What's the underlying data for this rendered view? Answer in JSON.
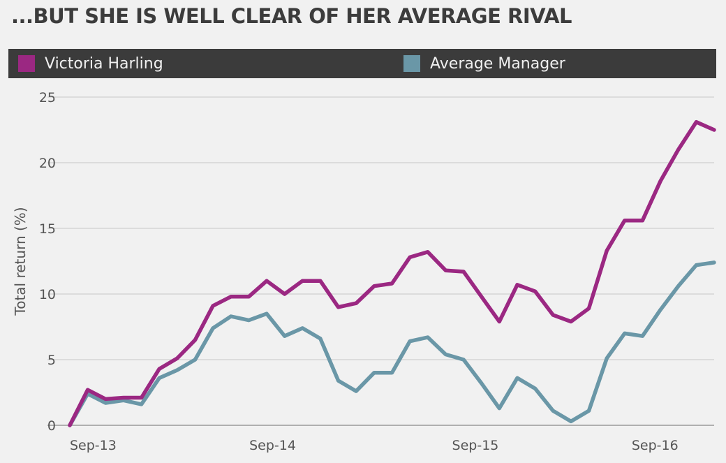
{
  "title": "...BUT SHE IS WELL CLEAR OF HER AVERAGE RIVAL",
  "legend": [
    {
      "label": "Victoria Harling",
      "color": "#9b2882"
    },
    {
      "label": "Average Manager",
      "color": "#6a97a7"
    }
  ],
  "chart_data": {
    "type": "line",
    "ylabel": "Total return (%)",
    "ylim": [
      0,
      25
    ],
    "yticks": [
      0,
      5,
      10,
      15,
      20,
      25
    ],
    "x_tick_labels": [
      "Sep-13",
      "Sep-14",
      "Sep-15",
      "Sep-16"
    ],
    "x_tick_index": [
      0,
      11.33,
      22.66,
      34
    ],
    "grid": "horizontal",
    "x": [
      "Sep-13",
      "Oct-13",
      "Nov-13",
      "Dec-13",
      "Jan-14",
      "Feb-14",
      "Mar-14",
      "Apr-14",
      "May-14",
      "Jun-14",
      "Jul-14",
      "Aug-14",
      "Sep-14",
      "Oct-14",
      "Nov-14",
      "Dec-14",
      "Jan-15",
      "Feb-15",
      "Mar-15",
      "Apr-15",
      "May-15",
      "Jun-15",
      "Jul-15",
      "Aug-15",
      "Sep-15",
      "Oct-15",
      "Nov-15",
      "Dec-15",
      "Jan-16",
      "Feb-16",
      "Mar-16",
      "Apr-16",
      "May-16",
      "Jun-16",
      "Jul-16",
      "Aug-16",
      "Sep-16"
    ],
    "series": [
      {
        "name": "Victoria Harling",
        "color": "#9b2882",
        "values": [
          0,
          2.7,
          2.0,
          2.1,
          2.1,
          4.3,
          5.1,
          6.5,
          9.1,
          9.8,
          9.8,
          11.0,
          10.0,
          11.0,
          11.0,
          9.0,
          9.3,
          10.6,
          10.8,
          12.8,
          13.2,
          11.8,
          11.7,
          9.8,
          7.9,
          10.7,
          10.2,
          8.4,
          7.9,
          8.9,
          13.3,
          15.6,
          15.6,
          18.6,
          21.0,
          23.1,
          22.5
        ]
      },
      {
        "name": "Average Manager",
        "color": "#6a97a7",
        "values": [
          0,
          2.4,
          1.7,
          1.9,
          1.6,
          3.6,
          4.2,
          5.0,
          7.4,
          8.3,
          8.0,
          8.5,
          6.8,
          7.4,
          6.6,
          3.4,
          2.6,
          4.0,
          4.0,
          6.4,
          6.7,
          5.4,
          5.0,
          3.2,
          1.3,
          3.6,
          2.8,
          1.1,
          0.3,
          1.1,
          5.1,
          7.0,
          6.8,
          8.8,
          10.6,
          12.2,
          12.4
        ]
      }
    ]
  }
}
